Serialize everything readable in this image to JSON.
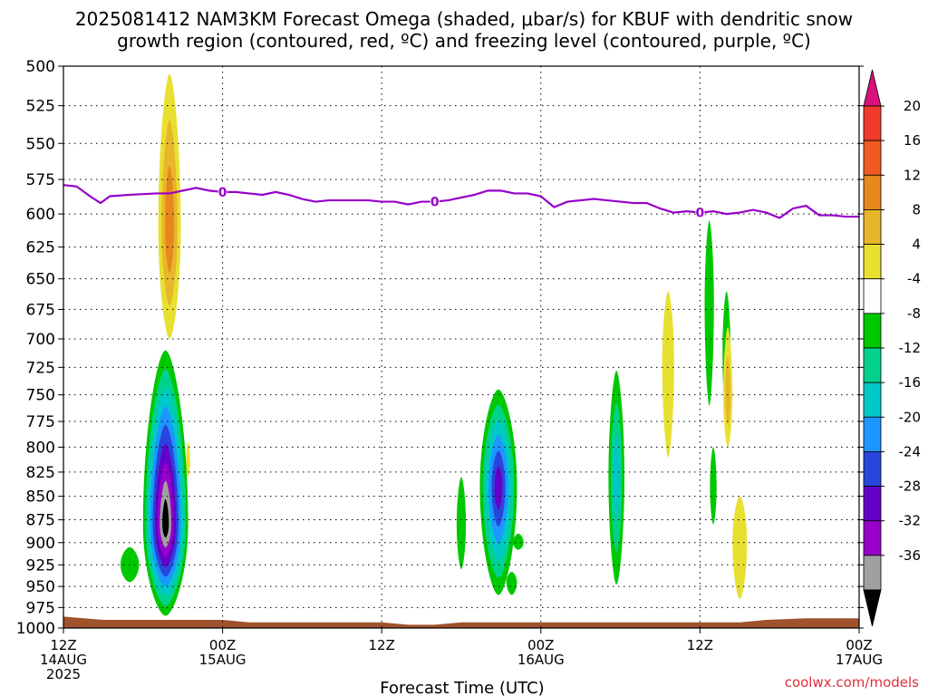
{
  "title_line1": "2025081412 NAM3KM Forecast Omega (shaded, μbar/s) for KBUF with dendritic snow",
  "title_line2": "growth region (contoured, red, ºC) and freezing level (contoured, purple, ºC)",
  "credit": "coolwx.com/models",
  "chart_data": {
    "type": "time-height cross section",
    "xlabel": "Forecast Time (UTC)",
    "xlim_hours": [
      0,
      60
    ],
    "x_ticks": [
      {
        "hour": 0,
        "label": "12Z",
        "sub": "14AUG",
        "sub2": "2025"
      },
      {
        "hour": 12,
        "label": "00Z",
        "sub": "15AUG",
        "sub2": ""
      },
      {
        "hour": 24,
        "label": "12Z",
        "sub": "",
        "sub2": ""
      },
      {
        "hour": 36,
        "label": "00Z",
        "sub": "16AUG",
        "sub2": ""
      },
      {
        "hour": 48,
        "label": "12Z",
        "sub": "",
        "sub2": ""
      },
      {
        "hour": 60,
        "label": "00Z",
        "sub": "17AUG",
        "sub2": ""
      }
    ],
    "ylabel": "",
    "y_ticks": [
      500,
      525,
      550,
      575,
      600,
      625,
      650,
      675,
      700,
      725,
      750,
      775,
      800,
      825,
      850,
      875,
      900,
      925,
      950,
      975,
      1000
    ],
    "ylim_hpa": [
      500,
      1000
    ],
    "y_scale": "log-pressure",
    "grid": true,
    "colorbar": {
      "labels": [
        "20",
        "16",
        "12",
        "8",
        "4",
        "-4",
        "-8",
        "-12",
        "-16",
        "-20",
        "-24",
        "-28",
        "-32",
        "-36"
      ],
      "levels": [
        20,
        16,
        12,
        8,
        4,
        -4,
        -8,
        -12,
        -16,
        -20,
        -24,
        -28,
        -32,
        -36
      ],
      "colors": [
        "#d8117d",
        "#ef3a2c",
        "#f05b22",
        "#e8861f",
        "#e8b62a",
        "#e8e031",
        "#ffffff",
        "#00c800",
        "#00d28c",
        "#00c8c8",
        "#1e96ff",
        "#2846dc",
        "#6400c8",
        "#9600c8",
        "#a0a0a0",
        "#000000"
      ]
    },
    "freezing_level": {
      "label": "0",
      "color": "#9600c8",
      "contour_labels_hours": [
        12,
        28,
        48
      ],
      "points": [
        [
          0,
          579
        ],
        [
          1,
          580
        ],
        [
          2,
          587
        ],
        [
          2.8,
          592
        ],
        [
          3.5,
          587
        ],
        [
          5,
          586
        ],
        [
          7,
          585
        ],
        [
          8,
          585
        ],
        [
          9,
          583
        ],
        [
          10,
          581
        ],
        [
          11,
          583
        ],
        [
          12,
          584
        ],
        [
          13,
          584
        ],
        [
          14,
          585
        ],
        [
          15,
          586
        ],
        [
          16,
          584
        ],
        [
          17,
          586
        ],
        [
          18,
          589
        ],
        [
          19,
          591
        ],
        [
          20,
          590
        ],
        [
          21,
          590
        ],
        [
          22,
          590
        ],
        [
          23,
          590
        ],
        [
          24,
          591
        ],
        [
          25,
          591
        ],
        [
          26,
          593
        ],
        [
          27,
          591
        ],
        [
          28,
          591
        ],
        [
          29,
          590
        ],
        [
          30,
          588
        ],
        [
          31,
          586
        ],
        [
          32,
          583
        ],
        [
          33,
          583
        ],
        [
          34,
          585
        ],
        [
          35,
          585
        ],
        [
          36,
          587
        ],
        [
          37,
          595
        ],
        [
          38,
          591
        ],
        [
          39,
          590
        ],
        [
          40,
          589
        ],
        [
          41,
          590
        ],
        [
          42,
          591
        ],
        [
          43,
          592
        ],
        [
          44,
          592
        ],
        [
          45,
          596
        ],
        [
          46,
          599
        ],
        [
          47,
          598
        ],
        [
          48,
          599
        ],
        [
          49,
          598
        ],
        [
          50,
          600
        ],
        [
          51,
          599
        ],
        [
          52,
          597
        ],
        [
          53,
          599
        ],
        [
          54,
          603
        ],
        [
          55,
          596
        ],
        [
          56,
          594
        ],
        [
          57,
          601
        ],
        [
          58,
          601
        ],
        [
          59,
          602
        ],
        [
          60,
          602
        ]
      ]
    },
    "omega_blobs": [
      {
        "t": 8.0,
        "p": 610,
        "dt": 0.85,
        "top": 505,
        "bot": 700,
        "levels": [
          4,
          8,
          12
        ]
      },
      {
        "t": 9.4,
        "p": 815,
        "dt": 0.15,
        "top": 795,
        "bot": 830,
        "levels": [
          4
        ]
      },
      {
        "t": 7.7,
        "p": 880,
        "dt": 1.7,
        "top": 710,
        "bot": 985,
        "levels": [
          -4,
          -8,
          -12,
          -16,
          -20,
          -24,
          -28,
          -32,
          -36
        ]
      },
      {
        "t": 5.0,
        "p": 925,
        "dt": 0.7,
        "top": 905,
        "bot": 945,
        "levels": [
          -4
        ]
      },
      {
        "t": 32.8,
        "p": 840,
        "dt": 1.4,
        "top": 745,
        "bot": 960,
        "levels": [
          -4,
          -8,
          -12,
          -16,
          -20,
          -24
        ]
      },
      {
        "t": 30.0,
        "p": 880,
        "dt": 0.35,
        "top": 830,
        "bot": 930,
        "levels": [
          -4
        ]
      },
      {
        "t": 41.7,
        "p": 830,
        "dt": 0.6,
        "top": 728,
        "bot": 948,
        "levels": [
          -4,
          -8,
          -12
        ]
      },
      {
        "t": 45.6,
        "p": 720,
        "dt": 0.45,
        "top": 660,
        "bot": 810,
        "levels": [
          4
        ]
      },
      {
        "t": 48.7,
        "p": 670,
        "dt": 0.35,
        "top": 605,
        "bot": 760,
        "levels": [
          -4
        ]
      },
      {
        "t": 49.0,
        "p": 840,
        "dt": 0.25,
        "top": 800,
        "bot": 880,
        "levels": [
          -4
        ]
      },
      {
        "t": 50.0,
        "p": 710,
        "dt": 0.3,
        "top": 660,
        "bot": 780,
        "levels": [
          -4
        ]
      },
      {
        "t": 50.1,
        "p": 750,
        "dt": 0.35,
        "top": 690,
        "bot": 800,
        "levels": [
          4,
          8
        ]
      },
      {
        "t": 51.0,
        "p": 900,
        "dt": 0.55,
        "top": 850,
        "bot": 965,
        "levels": [
          4
        ]
      },
      {
        "t": 34.3,
        "p": 900,
        "dt": 0.4,
        "top": 890,
        "bot": 908,
        "levels": [
          -4
        ]
      },
      {
        "t": 33.8,
        "p": 945,
        "dt": 0.4,
        "top": 933,
        "bot": 960,
        "levels": [
          -4
        ]
      }
    ],
    "terrain": {
      "color": "#a0522d",
      "points": [
        [
          0,
          986
        ],
        [
          3,
          990
        ],
        [
          6,
          990
        ],
        [
          12,
          990
        ],
        [
          14,
          993
        ],
        [
          20,
          993
        ],
        [
          24,
          993
        ],
        [
          26,
          996
        ],
        [
          28,
          996
        ],
        [
          30,
          993
        ],
        [
          36,
          993
        ],
        [
          42,
          993
        ],
        [
          48,
          993
        ],
        [
          51,
          993
        ],
        [
          53,
          990
        ],
        [
          56,
          988
        ],
        [
          60,
          988
        ]
      ]
    }
  }
}
